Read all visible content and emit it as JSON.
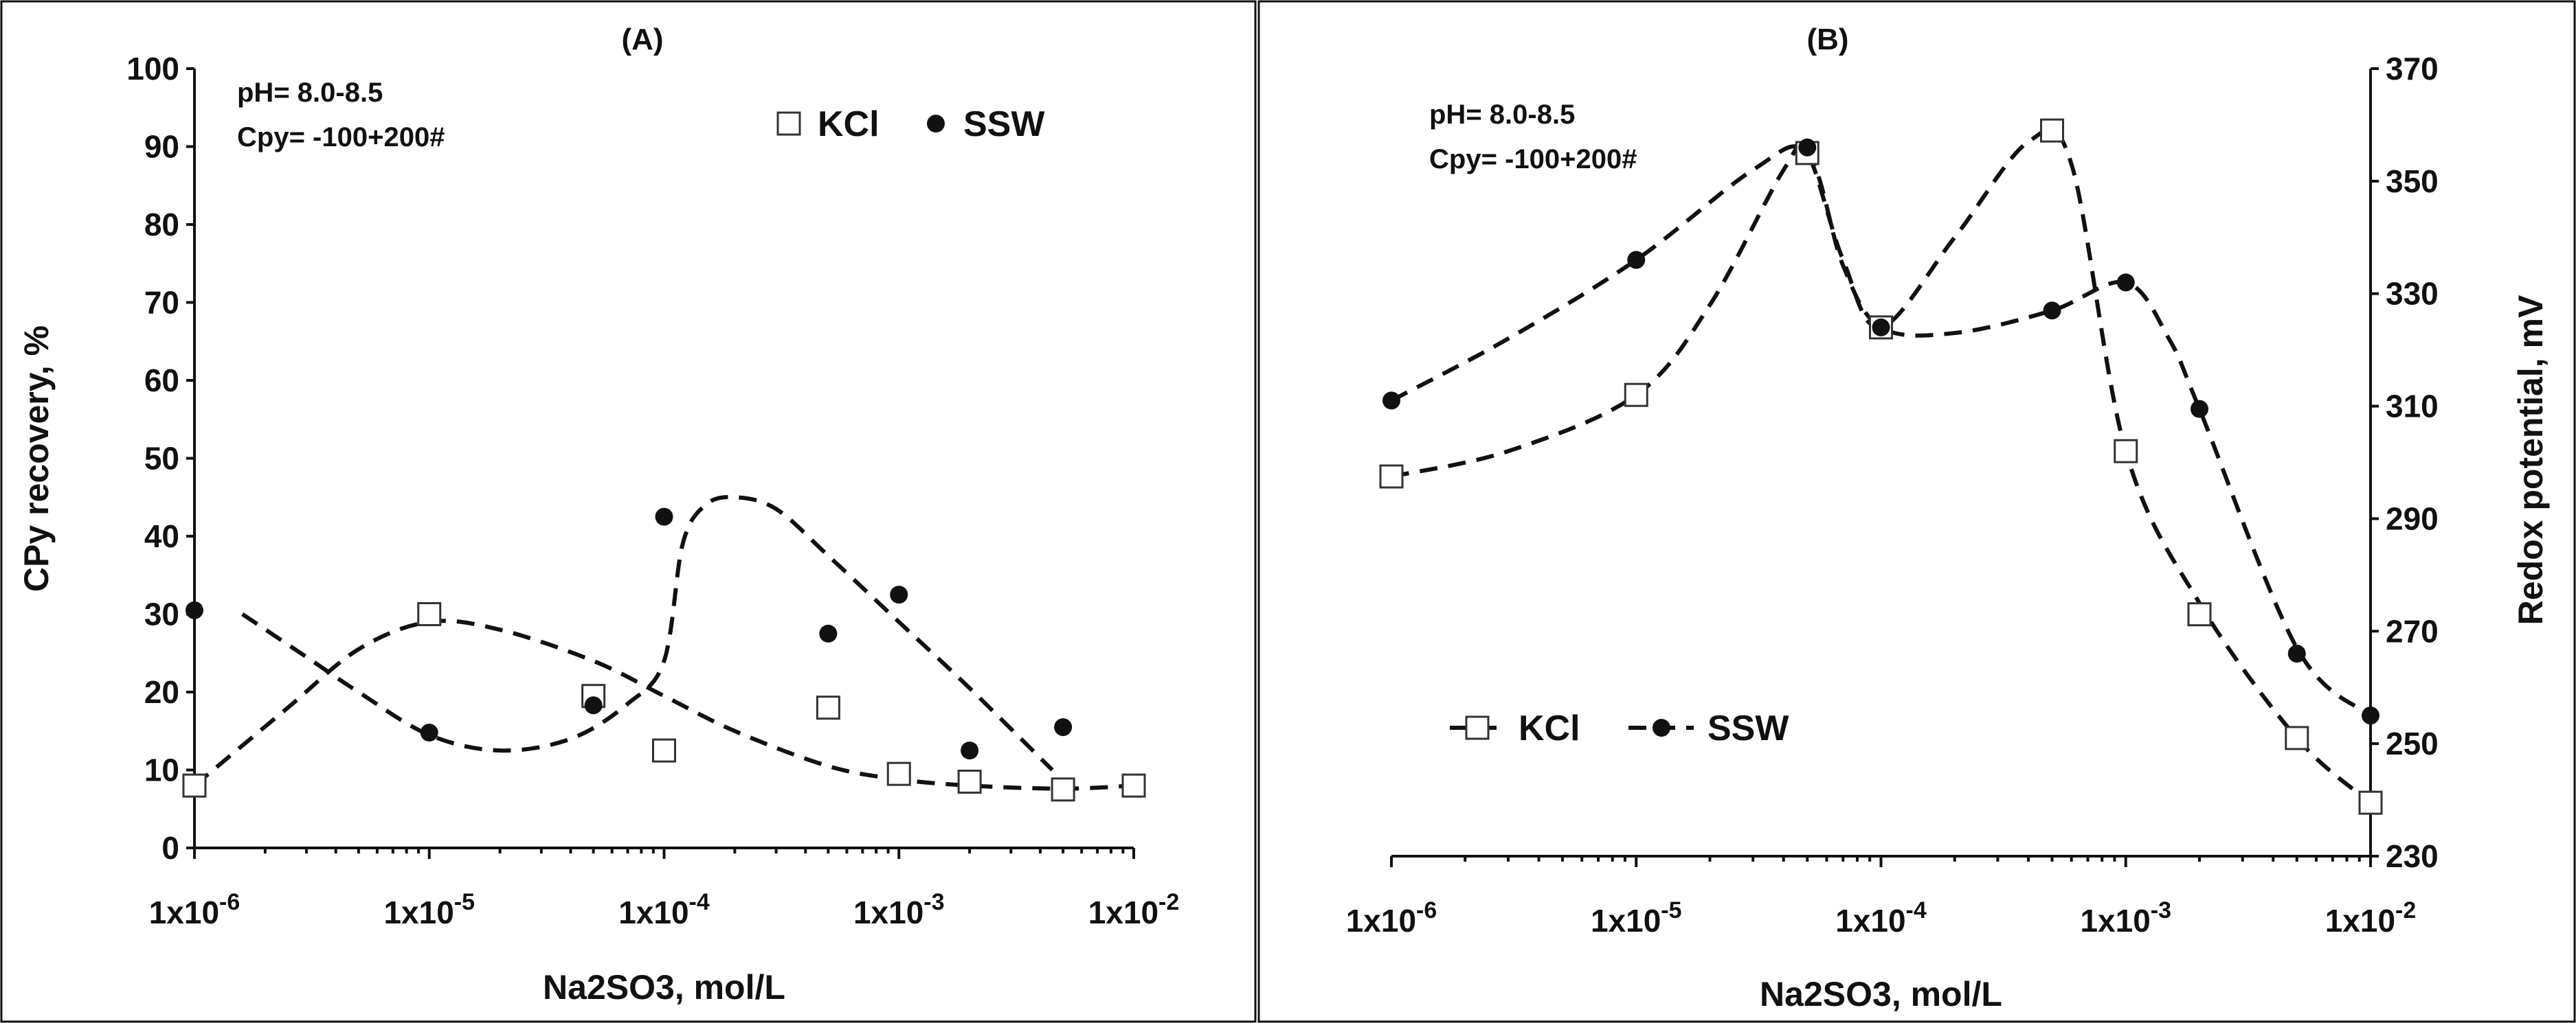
{
  "chart_data": [
    {
      "panel": "(A)",
      "type": "scatter",
      "title": "(A)",
      "xlabel": "Na2SO3, mol/L",
      "ylabel": "CPy recovery, %",
      "x_scale": "log",
      "xlim": [
        1e-06,
        0.01
      ],
      "ylim": [
        0,
        100
      ],
      "x_ticks": [
        {
          "value": 1e-06,
          "base": "1x10",
          "exp": "-6"
        },
        {
          "value": 1e-05,
          "base": "1x10",
          "exp": "-5"
        },
        {
          "value": 0.0001,
          "base": "1x10",
          "exp": "-4"
        },
        {
          "value": 0.001,
          "base": "1x10",
          "exp": "-3"
        },
        {
          "value": 0.01,
          "base": "1x10",
          "exp": "-2"
        }
      ],
      "y_ticks": [
        0,
        10,
        20,
        30,
        40,
        50,
        60,
        70,
        80,
        90,
        100
      ],
      "annotations": [
        "pH= 8.0-8.5",
        "Cpy= -100+200#"
      ],
      "legend": {
        "position": "top-right",
        "entries": [
          "KCl",
          "SSW"
        ]
      },
      "series": [
        {
          "name": "KCl",
          "marker": "open-square",
          "x": [
            1e-06,
            1e-05,
            5e-05,
            0.0001,
            0.0005,
            0.001,
            0.002,
            0.005,
            0.01
          ],
          "y": [
            8,
            30,
            19.5,
            12.5,
            18,
            9.5,
            8.5,
            7.5,
            8
          ]
        },
        {
          "name": "SSW",
          "marker": "filled-circle",
          "x": [
            1e-06,
            1e-05,
            5e-05,
            0.0001,
            0.0005,
            0.001,
            0.002,
            0.005
          ],
          "y": [
            30.5,
            14.8,
            18.3,
            42.5,
            27.5,
            32.5,
            12.5,
            15.5
          ]
        }
      ],
      "trend_lines": [
        {
          "follows": "KCl",
          "x": [
            1e-06,
            2.5e-06,
            5e-06,
            1e-05,
            2e-05,
            5e-05,
            0.0001,
            0.0002,
            0.0005,
            0.001,
            0.002,
            0.005,
            0.01
          ],
          "y": [
            8,
            18,
            25.5,
            29,
            28,
            24,
            19.5,
            15,
            10.5,
            8.8,
            8,
            7.6,
            8
          ]
        },
        {
          "follows": "SSW",
          "x": [
            1.6e-06,
            3e-06,
            5e-06,
            1e-05,
            2e-05,
            4e-05,
            7e-05,
            0.0001,
            0.00012,
            0.00015,
            0.0002,
            0.0003,
            0.0005,
            0.001,
            0.002,
            0.0045
          ],
          "y": [
            30,
            24.5,
            20,
            14.5,
            12.5,
            14,
            18.5,
            24,
            39,
            44,
            45,
            43.5,
            37.5,
            29,
            20.5,
            10
          ]
        }
      ]
    },
    {
      "panel": "(B)",
      "type": "line",
      "title": "(B)",
      "xlabel": "Na2SO3, mol/L",
      "ylabel": "Redox potential, mV",
      "x_scale": "log",
      "xlim": [
        1e-06,
        0.01
      ],
      "ylim": [
        230,
        370
      ],
      "x_ticks": [
        {
          "value": 1e-06,
          "base": "1x10",
          "exp": "-6"
        },
        {
          "value": 1e-05,
          "base": "1x10",
          "exp": "-5"
        },
        {
          "value": 0.0001,
          "base": "1x10",
          "exp": "-4"
        },
        {
          "value": 0.001,
          "base": "1x10",
          "exp": "-3"
        },
        {
          "value": 0.01,
          "base": "1x10",
          "exp": "-2"
        }
      ],
      "y_ticks": [
        230,
        250,
        270,
        290,
        310,
        330,
        350,
        370
      ],
      "annotations": [
        "pH= 8.0-8.5",
        "Cpy= -100+200#"
      ],
      "legend": {
        "position": "lower-left",
        "entries": [
          "KCl",
          "SSW"
        ]
      },
      "series": [
        {
          "name": "KCl",
          "marker": "open-square",
          "x": [
            1e-06,
            1e-05,
            5e-05,
            0.0001,
            0.0005,
            0.001,
            0.002,
            0.005,
            0.01
          ],
          "y": [
            297.5,
            312,
            355,
            324,
            359,
            302,
            273,
            251,
            239.5
          ]
        },
        {
          "name": "SSW",
          "marker": "filled-circle",
          "x": [
            1e-06,
            1e-05,
            5e-05,
            0.0001,
            0.0005,
            0.001,
            0.002,
            0.005,
            0.01
          ],
          "y": [
            311,
            336,
            356,
            324,
            327,
            332,
            309.5,
            266,
            255
          ]
        }
      ],
      "trend_lines": [
        {
          "follows": "KCl",
          "x": [
            1e-06,
            3e-06,
            1e-05,
            2e-05,
            4e-05,
            5e-05,
            7e-05,
            0.0001,
            0.0002,
            0.0004,
            0.0006,
            0.001,
            0.002,
            0.005,
            0.01
          ],
          "y": [
            297.5,
            302,
            312,
            328,
            352,
            355,
            336,
            324,
            340,
            357,
            353,
            302,
            275,
            251,
            239.5
          ]
        },
        {
          "follows": "SSW",
          "x": [
            1e-06,
            3e-06,
            1e-05,
            3e-05,
            5e-05,
            7e-05,
            0.0001,
            0.0002,
            0.0005,
            0.001,
            0.0015,
            0.002,
            0.005,
            0.01
          ],
          "y": [
            311,
            322,
            336,
            352,
            355,
            335,
            324,
            323,
            327,
            332,
            322,
            309.5,
            267,
            255
          ]
        }
      ]
    }
  ]
}
